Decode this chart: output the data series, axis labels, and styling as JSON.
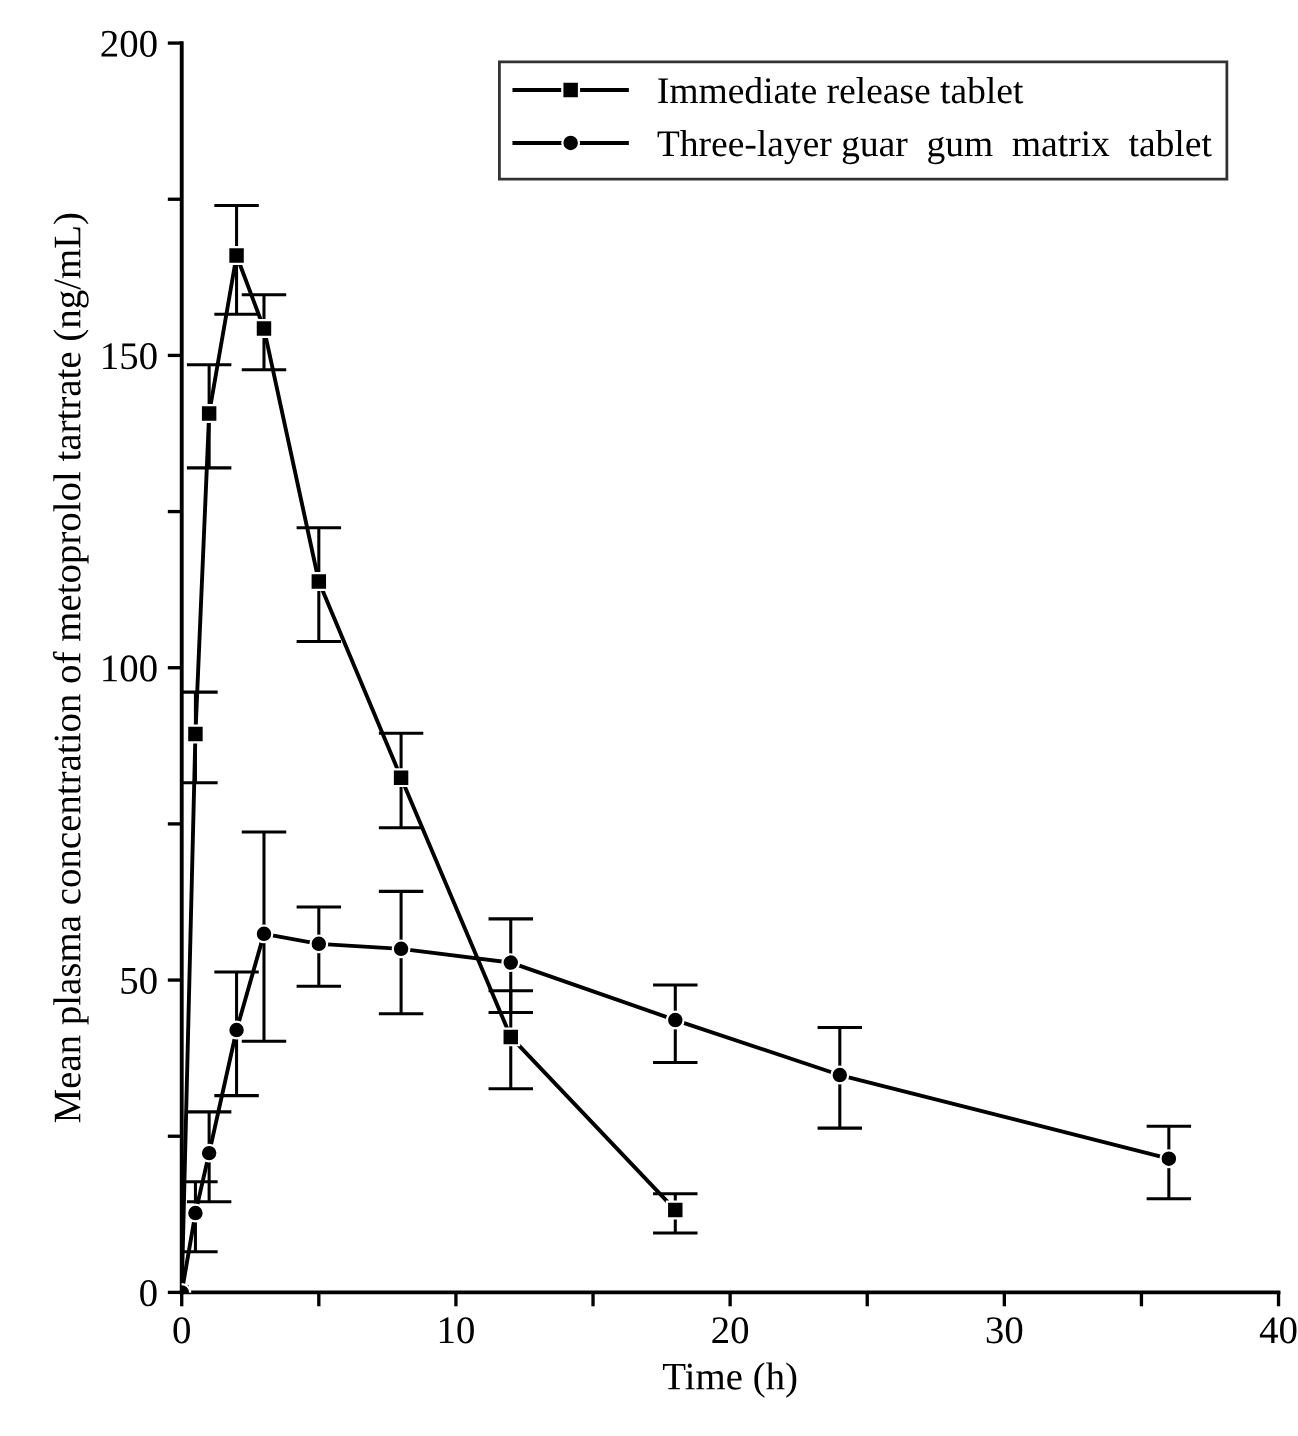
{
  "chart_data": {
    "type": "line",
    "xlabel": "Time (h)",
    "ylabel": "Mean plasma concentration of metoprolol tartrate (ng/mL)",
    "xlim": [
      0,
      40
    ],
    "xticks": [
      0,
      {
        "value": 5,
        "label": null
      },
      10,
      {
        "value": 15,
        "label": null
      },
      20,
      {
        "value": 25,
        "label": null
      },
      30,
      {
        "value": 35,
        "label": null
      },
      40
    ],
    "ylim": [
      0,
      200
    ],
    "yticks": [
      0,
      {
        "value": 25,
        "label": null
      },
      50,
      {
        "value": 75,
        "label": null
      },
      100,
      {
        "value": 125,
        "label": null
      },
      150,
      {
        "value": 175,
        "label": null
      },
      200
    ],
    "grid": false,
    "legend": "top right",
    "line_style": "solid",
    "series": [
      {
        "name": "Immediate release tablet",
        "color": "#000000",
        "marker": "square",
        "x": [
          0,
          0.5,
          1,
          2,
          3,
          5,
          8,
          12,
          18
        ],
        "values": [
          0,
          89.4,
          140.7,
          166,
          154.3,
          113.8,
          82.4,
          40.9,
          13.2
        ],
        "errors": [
          null,
          [
            81.6,
            96.1
          ],
          [
            132,
            148.5
          ],
          [
            156.6,
            174
          ],
          [
            147.7,
            159.7
          ],
          [
            104.2,
            122.4
          ],
          [
            74.4,
            89.5
          ],
          [
            32.6,
            48.3
          ],
          [
            9.5,
            15.8
          ]
        ]
      },
      {
        "name": "Three-layer guar  gum  matrix  tablet",
        "color": "#000000",
        "marker": "circle",
        "x": [
          0,
          0.5,
          1,
          2,
          3,
          5,
          8,
          12,
          18,
          24,
          36
        ],
        "values": [
          0,
          12.7,
          22.3,
          42,
          57.4,
          55.8,
          55,
          52.8,
          43.6,
          34.8,
          21.4
        ],
        "errors": [
          null,
          [
            6.5,
            17.7
          ],
          [
            14.5,
            28.9
          ],
          [
            31.5,
            51.3
          ],
          [
            40.2,
            73.7
          ],
          [
            49,
            61.7
          ],
          [
            44.6,
            64.2
          ],
          [
            44.8,
            59.8
          ],
          [
            36.8,
            49.2
          ],
          [
            26.3,
            42.4
          ],
          [
            15,
            26.6
          ]
        ]
      }
    ]
  }
}
